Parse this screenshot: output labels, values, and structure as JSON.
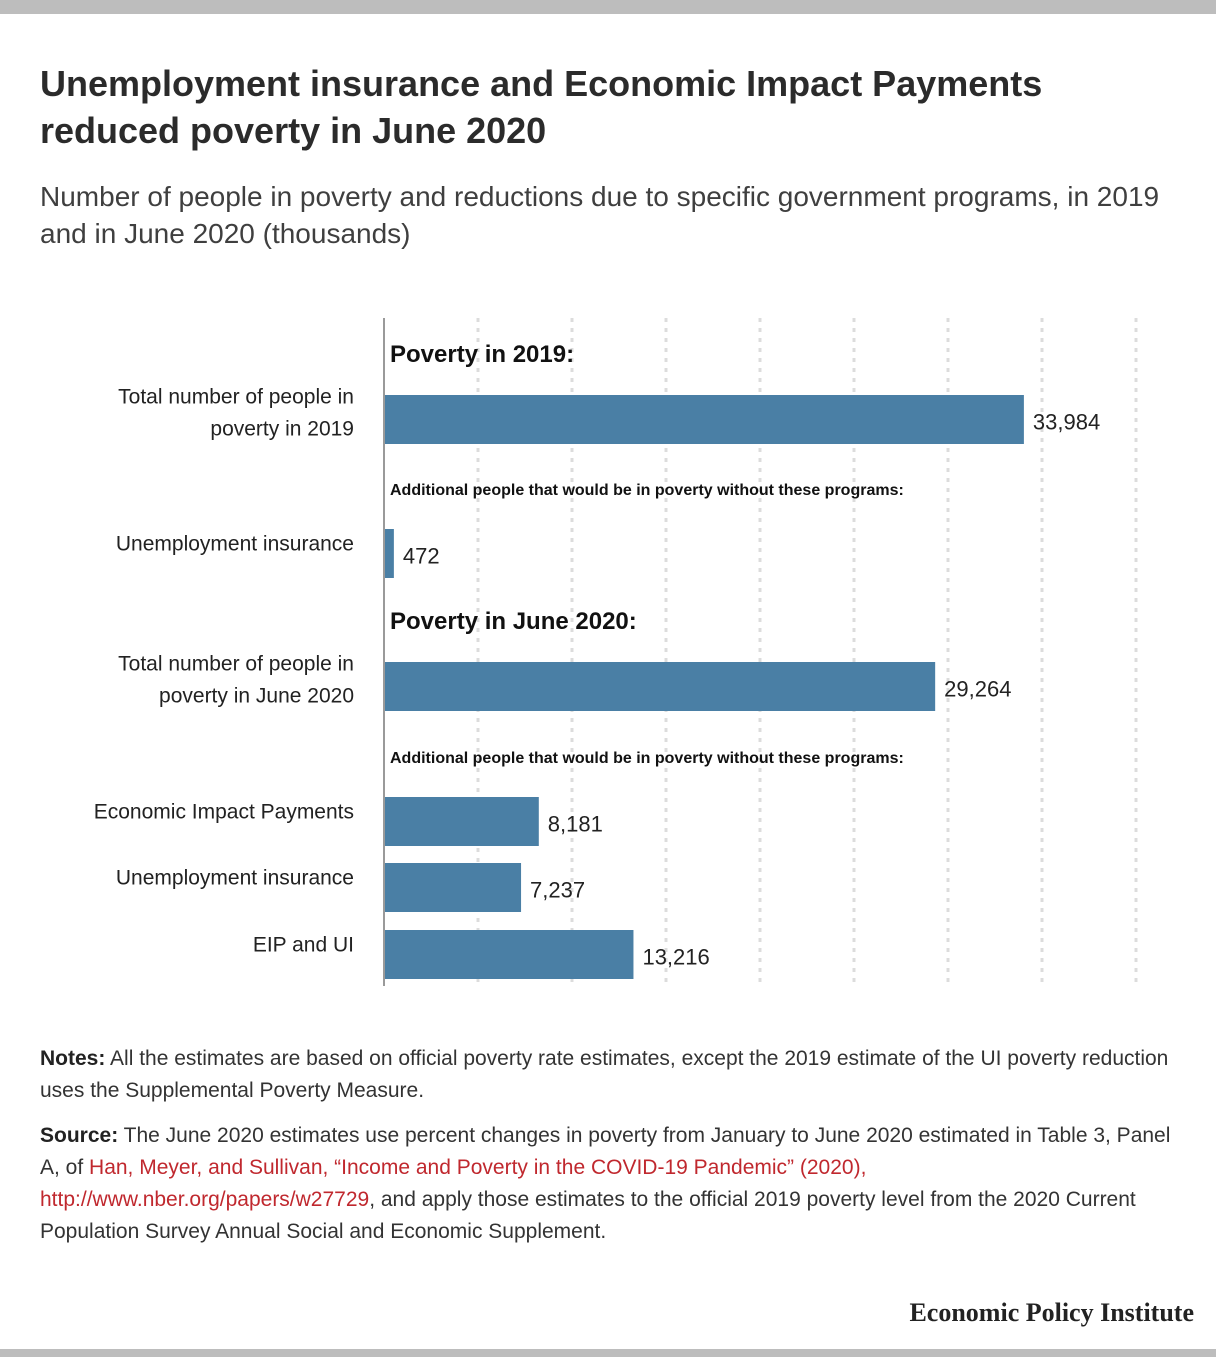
{
  "title": "Unemployment insurance and Economic Impact Payments reduced poverty in June 2020",
  "subtitle": "Number of people in poverty and reductions due to specific government programs, in 2019 and in June 2020 (thousands)",
  "chart_data": {
    "type": "bar",
    "orientation": "horizontal",
    "xlim": [
      0,
      40000
    ],
    "grid": true,
    "bar_color": "#4a7fa5",
    "sections": [
      {
        "heading": "Poverty in 2019:"
      },
      {
        "heading": "Additional people that would be in poverty without these programs:"
      },
      {
        "heading": "Poverty in June 2020:"
      },
      {
        "heading": "Additional people that would be in poverty without these programs:"
      }
    ],
    "categories": [
      "Total number of people in poverty in 2019",
      "Unemployment insurance",
      "Total number of people in poverty in June 2020",
      "Economic Impact Payments",
      "Unemployment insurance",
      "EIP and UI"
    ],
    "category_lines": [
      [
        "Total number of people in",
        "poverty in 2019"
      ],
      [
        "Unemployment insurance"
      ],
      [
        "Total number of people in",
        "poverty in June 2020"
      ],
      [
        "Economic Impact Payments"
      ],
      [
        "Unemployment insurance"
      ],
      [
        "EIP and UI"
      ]
    ],
    "values": [
      33984,
      472,
      29264,
      8181,
      7237,
      13216
    ],
    "value_labels": [
      "33,984",
      "472",
      "29,264",
      "8,181",
      "7,237",
      "13,216"
    ]
  },
  "notes": {
    "label": "Notes:",
    "text": " All the estimates are based on official poverty rate estimates, except the 2019 estimate of the UI poverty reduction uses the Supplemental Poverty Measure."
  },
  "source": {
    "label": "Source:",
    "text_before": " The June 2020 estimates use percent changes in poverty from January to June 2020 estimated in Table 3, Panel A, of ",
    "link": "Han, Meyer, and Sullivan, “Income and Poverty in the COVID-19 Pandemic” (2020), http://www.nber.org/papers/w27729",
    "text_after": ", and apply those estimates to the official 2019 poverty level from the 2020 Current Population Survey Annual Social and Economic Supplement."
  },
  "brand": "Economic Policy Institute",
  "colors": {
    "bar": "#4a7fa5",
    "link": "#c0282e",
    "rule": "#bdbdbd",
    "grid": "#dcdcdc"
  }
}
